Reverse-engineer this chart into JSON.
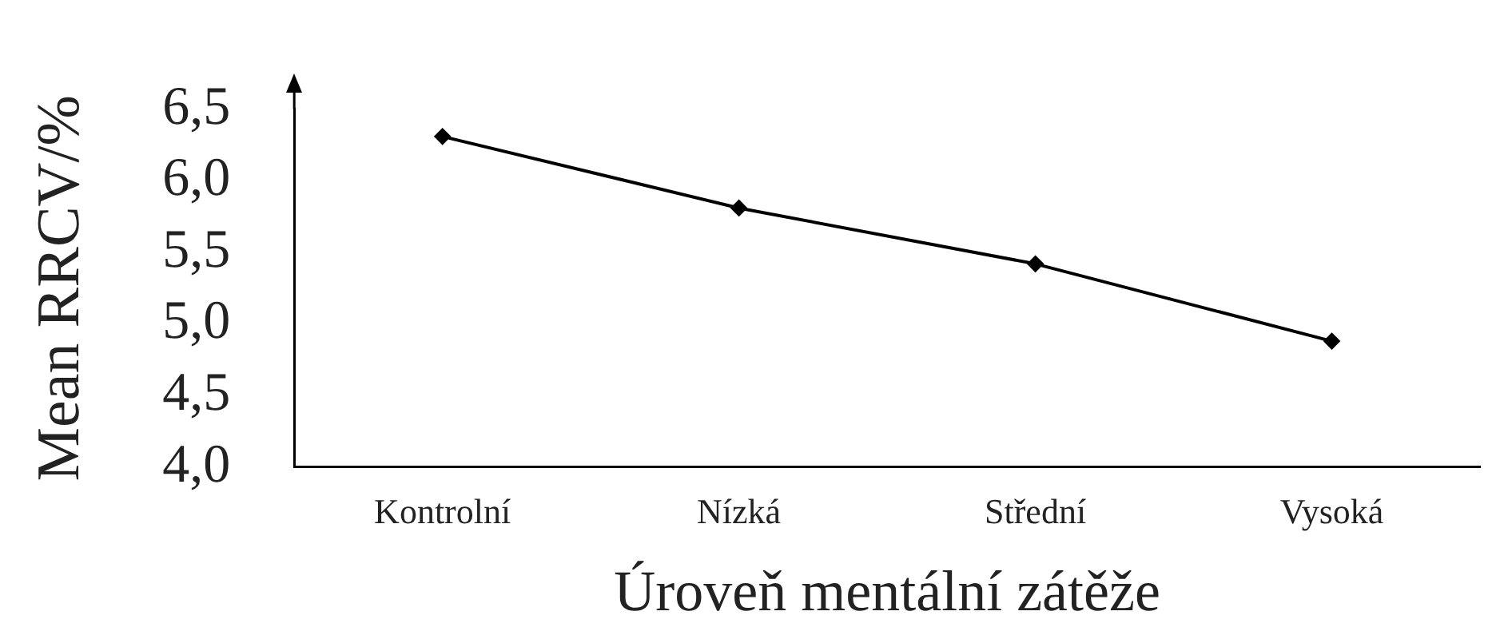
{
  "chart_data": {
    "type": "line",
    "xlabel": "Úroveň mentální zátěže",
    "ylabel": "Mean RRCV/%",
    "categories": [
      "Kontrolní",
      "Nízká",
      "Střední",
      "Vysoká"
    ],
    "series": [
      {
        "color": "#000000",
        "values": [
          6.31,
          5.81,
          5.42,
          4.88
        ]
      }
    ],
    "ylim": [
      4.0,
      6.5
    ],
    "yticks": [
      {
        "value": 4.0,
        "label": "4,0"
      },
      {
        "value": 4.5,
        "label": "4,5"
      },
      {
        "value": 5.0,
        "label": "5,0"
      },
      {
        "value": 5.5,
        "label": "5,5"
      },
      {
        "value": 6.0,
        "label": "6,0"
      },
      {
        "value": 6.5,
        "label": "6,5"
      }
    ],
    "marker": "diamond",
    "line_style": "solid",
    "grid": false,
    "legend": false
  }
}
